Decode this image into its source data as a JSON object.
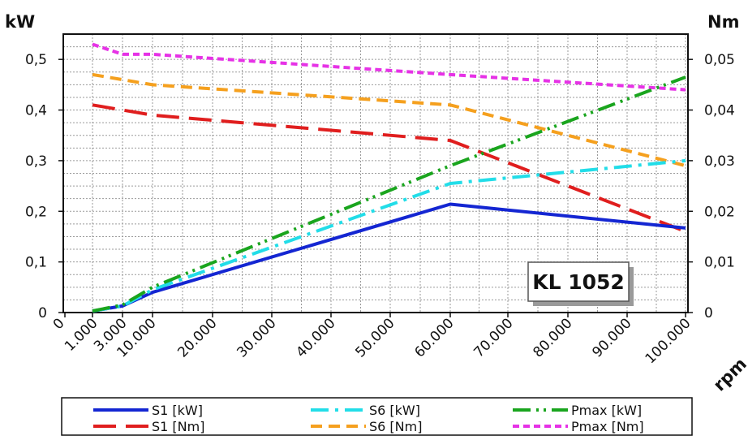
{
  "chart_data": {
    "type": "line",
    "y_left_unit": "kW",
    "y_right_unit": "Nm",
    "x_unit": "rpm",
    "x_tick_labels": [
      "0",
      "1.000",
      "3.000",
      "10.000",
      "20.000",
      "30.000",
      "40.000",
      "50.000",
      "60.000",
      "70.000",
      "80.000",
      "90.000",
      "100.000"
    ],
    "y_left_ticks": [
      0,
      0.1,
      0.2,
      0.3,
      0.4,
      0.5
    ],
    "y_left_tick_labels": [
      "0",
      "0,1",
      "0,2",
      "0,3",
      "0,4",
      "0,5"
    ],
    "y_right_ticks": [
      0,
      0.01,
      0.02,
      0.03,
      0.04,
      0.05
    ],
    "y_right_tick_labels": [
      "0",
      "0,01",
      "0,02",
      "0,03",
      "0,04",
      "0,05"
    ],
    "y_left_range": [
      0,
      0.55
    ],
    "y_right_range": [
      0,
      0.055
    ],
    "grid": true,
    "annotation": "KL 1052",
    "legend_position": "bottom",
    "series": [
      {
        "name": "S1 [kW]",
        "axis": "left",
        "color": "#1426d2",
        "dash": "solid",
        "points": [
          [
            "1.000",
            0.003
          ],
          [
            "3.000",
            0.013
          ],
          [
            "10.000",
            0.04
          ],
          [
            "60.000",
            0.214
          ],
          [
            "100.000",
            0.167
          ]
        ]
      },
      {
        "name": "S6 [kW]",
        "axis": "left",
        "color": "#22dde8",
        "dash": "dashdot",
        "points": [
          [
            "1.000",
            0.003
          ],
          [
            "3.000",
            0.013
          ],
          [
            "10.000",
            0.045
          ],
          [
            "60.000",
            0.255
          ],
          [
            "100.000",
            0.3
          ]
        ]
      },
      {
        "name": "Pmax [kW]",
        "axis": "left",
        "color": "#1aa51e",
        "dash": "dashdotdot",
        "points": [
          [
            "1.000",
            0.003
          ],
          [
            "3.000",
            0.015
          ],
          [
            "10.000",
            0.05
          ],
          [
            "60.000",
            0.29
          ],
          [
            "100.000",
            0.465
          ]
        ]
      },
      {
        "name": "S1 [Nm]",
        "axis": "right",
        "color": "#e01e1e",
        "dash": "longdash",
        "points": [
          [
            "1.000",
            0.041
          ],
          [
            "3.000",
            0.04
          ],
          [
            "10.000",
            0.039
          ],
          [
            "60.000",
            0.034
          ],
          [
            "100.000",
            0.016
          ]
        ]
      },
      {
        "name": "S6 [Nm]",
        "axis": "right",
        "color": "#f5a01e",
        "dash": "dash",
        "points": [
          [
            "1.000",
            0.047
          ],
          [
            "3.000",
            0.046
          ],
          [
            "10.000",
            0.045
          ],
          [
            "60.000",
            0.041
          ],
          [
            "100.000",
            0.029
          ]
        ]
      },
      {
        "name": "Pmax [Nm]",
        "axis": "right",
        "color": "#e632e6",
        "dash": "shortdash",
        "points": [
          [
            "1.000",
            0.053
          ],
          [
            "3.000",
            0.051
          ],
          [
            "10.000",
            0.051
          ],
          [
            "60.000",
            0.047
          ],
          [
            "100.000",
            0.044
          ]
        ]
      }
    ]
  }
}
